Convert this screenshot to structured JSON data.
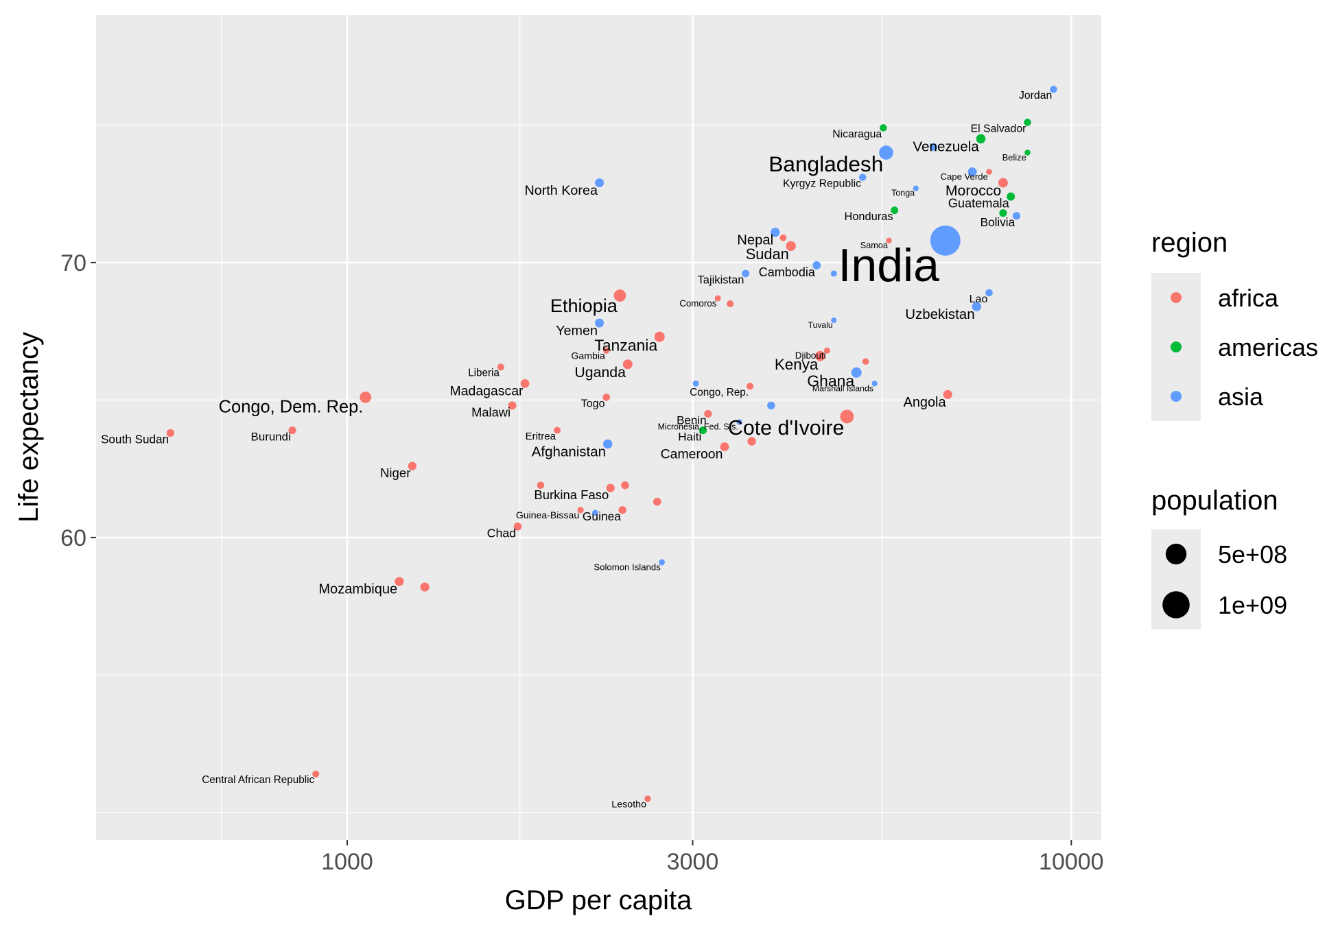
{
  "chart_data": {
    "type": "scatter",
    "xlabel": "GDP per capita",
    "ylabel": "Life expectancy",
    "x_scale": "log10",
    "xlim": [
      450,
      11000
    ],
    "ylim": [
      49,
      79
    ],
    "x_ticks": [
      1000,
      3000,
      10000
    ],
    "x_tick_labels": [
      "1000",
      "3000",
      "10000"
    ],
    "y_ticks": [
      60,
      70
    ],
    "y_tick_labels": [
      "60",
      "70"
    ],
    "grid": true,
    "legend_position": "right",
    "legend": {
      "color_title": "region",
      "color_entries": [
        {
          "name": "africa",
          "color": "#F8766D"
        },
        {
          "name": "americas",
          "color": "#00BA38"
        },
        {
          "name": "asia",
          "color": "#619CFF"
        }
      ],
      "size_title": "population",
      "size_entries": [
        {
          "label": "5e+08",
          "population": 500000000
        },
        {
          "label": "1e+09",
          "population": 1000000000
        }
      ]
    },
    "points": [
      {
        "x": 9450,
        "y": 76.3,
        "region": "asia",
        "pop": 6000000,
        "label": "Jordan"
      },
      {
        "x": 8700,
        "y": 75.1,
        "region": "americas",
        "pop": 6000000,
        "label": "El Salvador"
      },
      {
        "x": 5500,
        "y": 74.9,
        "region": "americas",
        "pop": 6000000,
        "label": "Nicaragua"
      },
      {
        "x": 7500,
        "y": 74.5,
        "region": "americas",
        "pop": 31000000,
        "label": "Venezuela"
      },
      {
        "x": 5550,
        "y": 74.0,
        "region": "asia",
        "pop": 160000000,
        "label": "Bangladesh"
      },
      {
        "x": 6450,
        "y": 74.2,
        "region": "asia",
        "pop": 10000000,
        "label": ""
      },
      {
        "x": 8700,
        "y": 74.0,
        "region": "americas",
        "pop": 360000,
        "label": "Belize"
      },
      {
        "x": 7300,
        "y": 73.3,
        "region": "asia",
        "pop": 25000000,
        "label": ""
      },
      {
        "x": 7700,
        "y": 73.3,
        "region": "africa",
        "pop": 520000,
        "label": "Cape Verde"
      },
      {
        "x": 5150,
        "y": 73.1,
        "region": "asia",
        "pop": 6000000,
        "label": "Kyrgyz Republic"
      },
      {
        "x": 8050,
        "y": 72.9,
        "region": "africa",
        "pop": 35000000,
        "label": "Morocco"
      },
      {
        "x": 6100,
        "y": 72.7,
        "region": "asia",
        "pop": 100000,
        "label": "Tonga"
      },
      {
        "x": 2230,
        "y": 72.9,
        "region": "asia",
        "pop": 25000000,
        "label": "North Korea"
      },
      {
        "x": 8250,
        "y": 72.4,
        "region": "americas",
        "pop": 16000000,
        "label": "Guatemala"
      },
      {
        "x": 5700,
        "y": 71.9,
        "region": "americas",
        "pop": 8000000,
        "label": "Honduras"
      },
      {
        "x": 8050,
        "y": 71.8,
        "region": "americas",
        "pop": 10000000,
        "label": ""
      },
      {
        "x": 8400,
        "y": 71.7,
        "region": "asia",
        "pop": 11000000,
        "label": "Bolivia"
      },
      {
        "x": 3900,
        "y": 71.1,
        "region": "asia",
        "pop": 28000000,
        "label": "Nepal"
      },
      {
        "x": 4000,
        "y": 70.9,
        "region": "africa",
        "pop": 3500000,
        "label": ""
      },
      {
        "x": 4100,
        "y": 70.6,
        "region": "africa",
        "pop": 40000000,
        "label": "Sudan"
      },
      {
        "x": 5600,
        "y": 70.8,
        "region": "africa",
        "pop": 190000,
        "label": "Samoa"
      },
      {
        "x": 6700,
        "y": 70.8,
        "region": "asia",
        "pop": 1300000000,
        "label": "India"
      },
      {
        "x": 4450,
        "y": 69.9,
        "region": "asia",
        "pop": 15000000,
        "label": "Cambodia"
      },
      {
        "x": 4700,
        "y": 69.6,
        "region": "asia",
        "pop": 1000000,
        "label": ""
      },
      {
        "x": 3550,
        "y": 69.6,
        "region": "asia",
        "pop": 8500000,
        "label": "Tajikistan"
      },
      {
        "x": 2380,
        "y": 68.8,
        "region": "africa",
        "pop": 95000000,
        "label": "Ethiopia"
      },
      {
        "x": 3250,
        "y": 68.7,
        "region": "africa",
        "pop": 780000,
        "label": "Comoros"
      },
      {
        "x": 3380,
        "y": 68.5,
        "region": "africa",
        "pop": 4000000,
        "label": ""
      },
      {
        "x": 7700,
        "y": 68.9,
        "region": "asia",
        "pop": 6800000,
        "label": "Lao"
      },
      {
        "x": 7400,
        "y": 68.4,
        "region": "asia",
        "pop": 30000000,
        "label": "Uzbekistan"
      },
      {
        "x": 4700,
        "y": 67.9,
        "region": "asia",
        "pop": 10000,
        "label": "Tuvalu"
      },
      {
        "x": 2230,
        "y": 67.8,
        "region": "asia",
        "pop": 25000000,
        "label": "Yemen"
      },
      {
        "x": 2700,
        "y": 67.3,
        "region": "africa",
        "pop": 50000000,
        "label": "Tanzania"
      },
      {
        "x": 2280,
        "y": 66.8,
        "region": "africa",
        "pop": 1900000,
        "label": "Gambia"
      },
      {
        "x": 2440,
        "y": 66.3,
        "region": "africa",
        "pop": 36000000,
        "label": "Uganda"
      },
      {
        "x": 1630,
        "y": 66.2,
        "region": "africa",
        "pop": 4300000,
        "label": "Liberia"
      },
      {
        "x": 4600,
        "y": 66.8,
        "region": "africa",
        "pop": 880000,
        "label": "Djibouti"
      },
      {
        "x": 4500,
        "y": 66.6,
        "region": "africa",
        "pop": 45000000,
        "label": "Kenya"
      },
      {
        "x": 5200,
        "y": 66.4,
        "region": "africa",
        "pop": 2000000,
        "label": ""
      },
      {
        "x": 5050,
        "y": 66.0,
        "region": "asia",
        "pop": 50000000,
        "label": "Ghana"
      },
      {
        "x": 5350,
        "y": 65.6,
        "region": "asia",
        "pop": 53000,
        "label": "Marshall Islands"
      },
      {
        "x": 1760,
        "y": 65.6,
        "region": "africa",
        "pop": 23000000,
        "label": "Madagascar"
      },
      {
        "x": 3030,
        "y": 65.6,
        "region": "asia",
        "pop": 1100000,
        "label": ""
      },
      {
        "x": 3600,
        "y": 65.5,
        "region": "africa",
        "pop": 4500000,
        "label": "Congo, Rep."
      },
      {
        "x": 1060,
        "y": 65.1,
        "region": "africa",
        "pop": 75000000,
        "label": "Congo, Dem. Rep."
      },
      {
        "x": 2280,
        "y": 65.1,
        "region": "africa",
        "pop": 7000000,
        "label": "Togo"
      },
      {
        "x": 6750,
        "y": 65.2,
        "region": "africa",
        "pop": 26000000,
        "label": "Angola"
      },
      {
        "x": 1690,
        "y": 64.8,
        "region": "africa",
        "pop": 16500000,
        "label": "Malawi"
      },
      {
        "x": 3850,
        "y": 64.8,
        "region": "asia",
        "pop": 12000000,
        "label": ""
      },
      {
        "x": 3150,
        "y": 64.5,
        "region": "africa",
        "pop": 10500000,
        "label": "Benin"
      },
      {
        "x": 4900,
        "y": 64.4,
        "region": "africa",
        "pop": 140000000,
        "label": "Cote d'Ivoire"
      },
      {
        "x": 3480,
        "y": 64.2,
        "region": "asia",
        "pop": 100000,
        "label": "Micronesia, Fed. Sts."
      },
      {
        "x": 3100,
        "y": 63.9,
        "region": "americas",
        "pop": 10500000,
        "label": "Haiti"
      },
      {
        "x": 1950,
        "y": 63.9,
        "region": "africa",
        "pop": 4000000,
        "label": "Eritrea"
      },
      {
        "x": 570,
        "y": 63.8,
        "region": "africa",
        "pop": 11000000,
        "label": "South Sudan"
      },
      {
        "x": 840,
        "y": 63.9,
        "region": "africa",
        "pop": 10000000,
        "label": "Burundi"
      },
      {
        "x": 2290,
        "y": 63.4,
        "region": "asia",
        "pop": 30000000,
        "label": "Afghanistan"
      },
      {
        "x": 3320,
        "y": 63.3,
        "region": "africa",
        "pop": 23000000,
        "label": "Cameroon"
      },
      {
        "x": 3620,
        "y": 63.5,
        "region": "africa",
        "pop": 20000000,
        "label": ""
      },
      {
        "x": 1230,
        "y": 62.6,
        "region": "africa",
        "pop": 18000000,
        "label": "Niger"
      },
      {
        "x": 1850,
        "y": 61.9,
        "region": "africa",
        "pop": 6500000,
        "label": ""
      },
      {
        "x": 2310,
        "y": 61.8,
        "region": "africa",
        "pop": 17500000,
        "label": "Burkina Faso"
      },
      {
        "x": 2420,
        "y": 61.9,
        "region": "africa",
        "pop": 12000000,
        "label": ""
      },
      {
        "x": 2100,
        "y": 61.0,
        "region": "africa",
        "pop": 1800000,
        "label": "Guinea-Bissau"
      },
      {
        "x": 2400,
        "y": 61.0,
        "region": "africa",
        "pop": 12000000,
        "label": "Guinea"
      },
      {
        "x": 2680,
        "y": 61.3,
        "region": "africa",
        "pop": 14000000,
        "label": ""
      },
      {
        "x": 2200,
        "y": 60.9,
        "region": "asia",
        "pop": 560000,
        "label": ""
      },
      {
        "x": 1720,
        "y": 60.4,
        "region": "africa",
        "pop": 14000000,
        "label": "Chad"
      },
      {
        "x": 2720,
        "y": 59.1,
        "region": "asia",
        "pop": 590000,
        "label": "Solomon Islands"
      },
      {
        "x": 1180,
        "y": 58.4,
        "region": "africa",
        "pop": 27000000,
        "label": "Mozambique"
      },
      {
        "x": 1280,
        "y": 58.2,
        "region": "africa",
        "pop": 27000000,
        "label": ""
      },
      {
        "x": 905,
        "y": 51.4,
        "region": "africa",
        "pop": 4500000,
        "label": "Central African Republic"
      },
      {
        "x": 2600,
        "y": 50.5,
        "region": "africa",
        "pop": 2100000,
        "label": "Lesotho"
      }
    ]
  }
}
